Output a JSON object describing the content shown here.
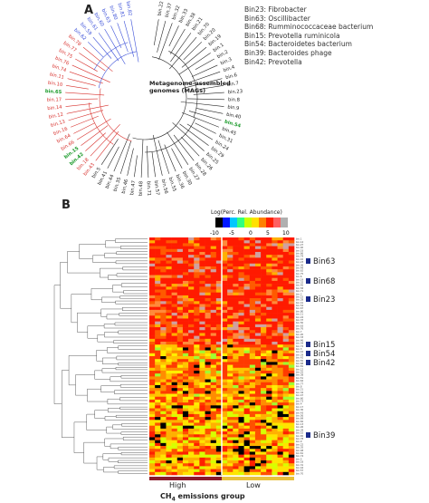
{
  "panels": {
    "a_label": "A",
    "b_label": "B"
  },
  "legend_a": [
    "Bin23: Fibrobacter",
    "Bin63: Oscillibacter",
    "Bin68: Rumminococcaceae bacterium",
    "Bin15: Prevotella ruminicola",
    "Bin54: Bacteroidetes bacterium",
    "Bin39: Bacteroides phage",
    "Bin42: Prevotella"
  ],
  "mag_label": [
    "Metagenome-assembled",
    "genomes (MAGs)"
  ],
  "tree_a_leaves": {
    "blue": [
      "bin.82",
      "bin.81",
      "bin.80",
      "bin.63",
      "bin.60",
      "bin.61",
      "bin.59",
      "bin.62"
    ],
    "red": [
      "bin.78",
      "bin.77",
      "bin.75",
      "bin.76",
      "bin.74",
      "bin.11",
      "bin.10",
      "bin.65",
      "bin.17",
      "bin.14",
      "bin.12",
      "bin.13",
      "bin.16",
      "bin.64",
      "bin.66",
      "bin.15",
      "bin.42",
      "bin.18",
      "bin.43"
    ],
    "green_highlight": [
      "bin.68",
      "bin.65",
      "bin.15",
      "bin.39",
      "bin.54",
      "bin.42"
    ],
    "black": [
      "bin.5",
      "bin.41",
      "bin.44",
      "bin.35",
      "bin.46",
      "bin.47",
      "bin.48",
      "bin.71",
      "bin.57",
      "bin.56",
      "bin.55",
      "bin.36",
      "bin.30",
      "bin.27",
      "bin.28",
      "bin.26",
      "bin.25",
      "bin.29",
      "bin.24",
      "bin.31",
      "bin.45",
      "bin.54",
      "bin.40",
      "bin.9",
      "bin.8",
      "bin.23",
      "bin.7",
      "bin.6",
      "bin.4",
      "bin.3",
      "bin.2",
      "bin.1",
      "bin.19",
      "bin.20",
      "bin.70",
      "bin.21",
      "bin.38",
      "bin.33",
      "bin.32",
      "bin.37",
      "bin.22"
    ]
  },
  "colorbar": {
    "title": "Log(Perc. Rel. Abundance)",
    "ticks": [
      "-10",
      "-5",
      "0",
      "5",
      "10"
    ],
    "colors": [
      "#000000",
      "#0018ff",
      "#00c8ff",
      "#30ff80",
      "#c8ff00",
      "#ffe000",
      "#ff8000",
      "#ff2000",
      "#ff6060",
      "#b0b0b0"
    ]
  },
  "heatmap": {
    "highlighted_bins": [
      "Bin63",
      "Bin68",
      "Bin23",
      "Bin15",
      "Bin54",
      "Bin42",
      "Bin39"
    ],
    "groups": [
      "High",
      "Low"
    ],
    "group_colors": {
      "High": "#8b1a2b",
      "Low": "#e8c13a"
    },
    "x_title_prefix": "CH",
    "x_title_sub": "4",
    "x_title_suffix": " emissions group"
  }
}
